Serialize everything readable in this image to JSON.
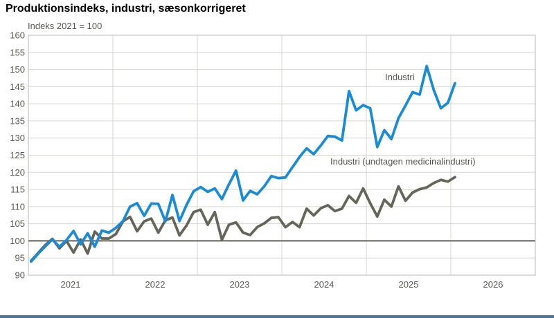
{
  "header": {
    "title": "Produktionsindeks, industri, sæsonkorrigeret",
    "subtitle": "Indeks 2021 = 100"
  },
  "chart_data": {
    "type": "line",
    "title": "Produktionsindeks, industri, sæsonkorrigeret",
    "unit_note": "Indeks 2021 = 100",
    "grid": true,
    "legend": "inline-labels",
    "y_axis": {
      "min": 90,
      "max": 160,
      "tick_step": 5
    },
    "x_axis": {
      "year_labels": [
        "2021",
        "2022",
        "2023",
        "2024",
        "2025",
        "2026"
      ],
      "start_month": "2021-01",
      "frequency": "monthly"
    },
    "baseline": {
      "value": 100,
      "color": "#63625a"
    },
    "colors": {
      "gridline": "#d7d6cf",
      "frame": "#b9b8b1",
      "tick_text": "#595850"
    },
    "series": [
      {
        "name": "Industri",
        "color": "#1a8bd4",
        "values": [
          94.0,
          96.3,
          98.4,
          100.4,
          98.3,
          100.2,
          102.9,
          99.0,
          102.2,
          98.3,
          103.0,
          102.4,
          103.8,
          105.8,
          110.0,
          111.0,
          107.3,
          110.9,
          110.8,
          105.7,
          113.4,
          105.8,
          110.5,
          114.5,
          115.7,
          114.3,
          115.3,
          112.2,
          116.5,
          120.5,
          111.8,
          114.6,
          113.6,
          115.9,
          118.9,
          118.3,
          118.5,
          121.5,
          124.5,
          127.0,
          125.3,
          127.8,
          130.6,
          130.4,
          129.3,
          143.7,
          138.1,
          139.6,
          138.7,
          127.4,
          132.3,
          129.7,
          135.8,
          139.5,
          143.4,
          142.7,
          151.0,
          144.0,
          138.7,
          140.3,
          146.0
        ]
      },
      {
        "name": "Industri (undtagen medicinalindustri)",
        "color": "#66655a",
        "values": [
          94.2,
          96.5,
          98.8,
          100.6,
          97.8,
          100.0,
          96.6,
          100.4,
          96.3,
          102.7,
          100.7,
          100.7,
          102.0,
          105.7,
          107.0,
          102.8,
          105.7,
          106.5,
          102.4,
          106.0,
          106.8,
          101.6,
          104.5,
          108.4,
          109.1,
          104.7,
          108.4,
          100.3,
          104.7,
          105.4,
          102.4,
          101.7,
          104.0,
          105.1,
          106.7,
          106.9,
          104.0,
          105.5,
          104.0,
          109.4,
          107.4,
          109.5,
          110.4,
          108.7,
          109.4,
          113.1,
          111.1,
          115.3,
          111.0,
          107.1,
          112.0,
          110.0,
          115.9,
          111.7,
          114.1,
          115.1,
          115.6,
          116.9,
          117.8,
          117.3,
          118.6
        ]
      }
    ]
  },
  "footer": {
    "bar_color": "#54718e"
  }
}
